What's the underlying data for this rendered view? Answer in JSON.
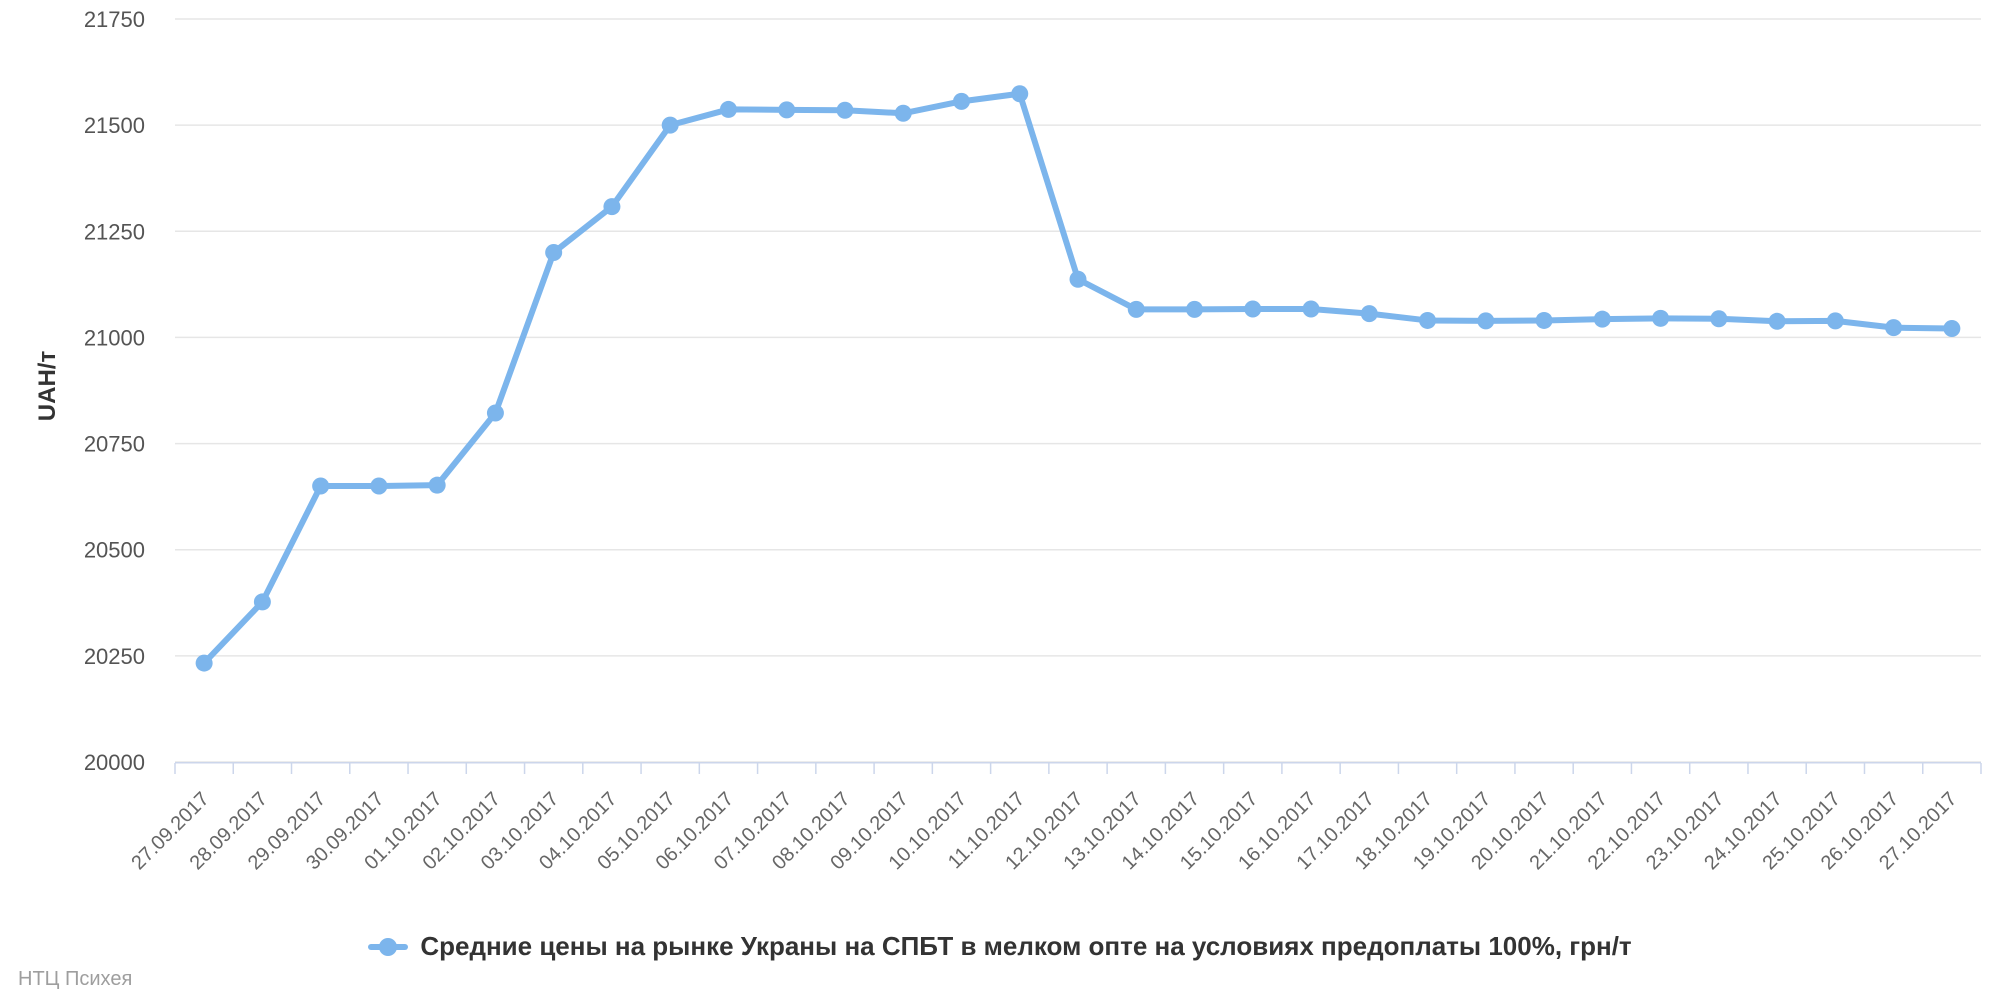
{
  "chart_data": {
    "type": "line",
    "title": "",
    "xlabel": "",
    "ylabel": "UAH/т",
    "ylim": [
      20000,
      21750
    ],
    "yticks": [
      20000,
      20250,
      20500,
      20750,
      21000,
      21250,
      21500,
      21750
    ],
    "grid": "horizontal",
    "legend_position": "bottom-center",
    "categories": [
      "27.09.2017",
      "28.09.2017",
      "29.09.2017",
      "30.09.2017",
      "01.10.2017",
      "02.10.2017",
      "03.10.2017",
      "04.10.2017",
      "05.10.2017",
      "06.10.2017",
      "07.10.2017",
      "08.10.2017",
      "09.10.2017",
      "10.10.2017",
      "11.10.2017",
      "12.10.2017",
      "13.10.2017",
      "14.10.2017",
      "15.10.2017",
      "16.10.2017",
      "17.10.2017",
      "18.10.2017",
      "19.10.2017",
      "20.10.2017",
      "21.10.2017",
      "22.10.2017",
      "23.10.2017",
      "24.10.2017",
      "25.10.2017",
      "26.10.2017",
      "27.10.2017"
    ],
    "series": [
      {
        "name": "Средние цены на рынке Украны на СПБТ в мелком опте на условиях предоплаты 100%, грн/т",
        "values": [
          20233,
          20377,
          20650,
          20650,
          20652,
          20822,
          21200,
          21308,
          21500,
          21537,
          21536,
          21535,
          21528,
          21556,
          21574,
          21137,
          21066,
          21066,
          21067,
          21067,
          21056,
          21040,
          21039,
          21040,
          21043,
          21045,
          21044,
          21038,
          21039,
          21023,
          21021
        ]
      }
    ],
    "colors": {
      "series": "#7cb5ec",
      "gridline": "#e6e6e6",
      "axis_line": "#ccd6eb",
      "y_tick_label": "#545454",
      "x_tick_label": "#666666",
      "legend_text": "#333333",
      "axis_title": "#333333"
    }
  },
  "footer": {
    "credit": "НТЦ Психея"
  }
}
